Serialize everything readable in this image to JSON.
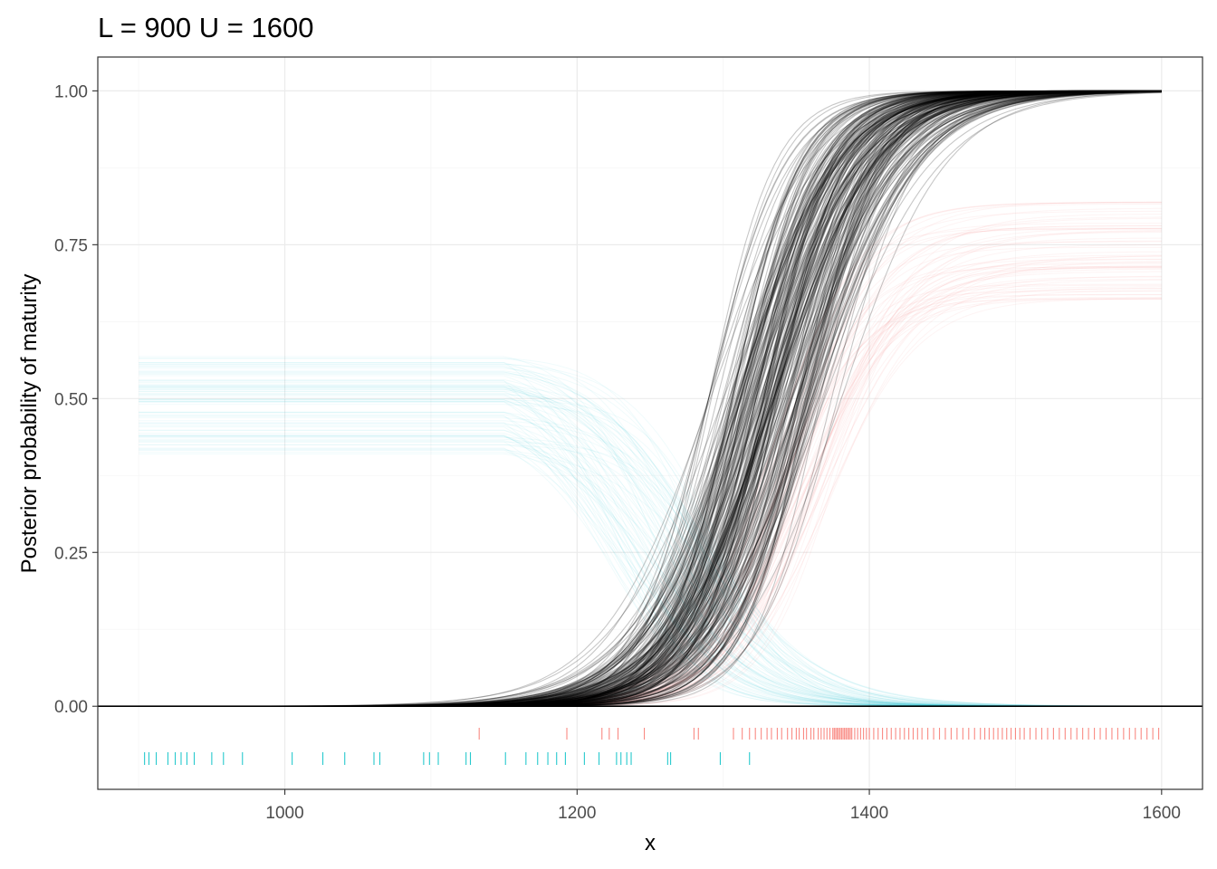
{
  "chart_data": {
    "type": "line",
    "title": "L = 900 U = 1600",
    "xlabel": "x",
    "ylabel": "Posterior probability of maturity",
    "xlim": [
      872,
      1628
    ],
    "ylim": [
      -0.135,
      1.055
    ],
    "x_ticks": [
      {
        "value": 1000,
        "label": "1000"
      },
      {
        "value": 1200,
        "label": "1200"
      },
      {
        "value": 1400,
        "label": "1400"
      },
      {
        "value": 1600,
        "label": "1600"
      }
    ],
    "y_ticks": [
      {
        "value": 0.0,
        "label": "0.00"
      },
      {
        "value": 0.25,
        "label": "0.25"
      },
      {
        "value": 0.5,
        "label": "0.50"
      },
      {
        "value": 0.75,
        "label": "0.75"
      },
      {
        "value": 1.0,
        "label": "1.00"
      }
    ],
    "grid": true,
    "reference_line": {
      "y": 0
    },
    "x_range": [
      900,
      1600
    ],
    "colors": {
      "posterior_curves": "#000000",
      "mature_band": "#F8766D",
      "immature_band": "#00BFC4",
      "panel_border": "#333333",
      "grid_major": "#ebebeb",
      "grid_minor": "#f5f5f5"
    },
    "series": [
      {
        "role": "posterior-logistic-curves",
        "draw_count": 240,
        "midpoint_range": [
          1290,
          1395
        ],
        "slope_range": [
          0.025,
          0.045
        ]
      },
      {
        "role": "mature-probability-band",
        "draw_count": 60,
        "plateau_range": [
          0.66,
          0.82
        ],
        "midpoint_range": [
          1330,
          1375
        ]
      },
      {
        "role": "immature-probability-band",
        "draw_count": 80,
        "plateau_range": [
          0.41,
          0.57
        ],
        "midpoint_range": [
          1215,
          1300
        ]
      }
    ],
    "rug_mature": [
      1133,
      1193,
      1217,
      1222,
      1228,
      1246,
      1280,
      1283,
      1307,
      1313,
      1318,
      1322,
      1326,
      1330,
      1333,
      1337,
      1340,
      1344,
      1347,
      1350,
      1352,
      1355,
      1357,
      1360,
      1362,
      1365,
      1367,
      1369,
      1371,
      1373,
      1375,
      1376,
      1377,
      1378,
      1379,
      1380,
      1381,
      1382,
      1383,
      1384,
      1385,
      1386,
      1387,
      1388,
      1390,
      1392,
      1394,
      1396,
      1398,
      1400,
      1403,
      1406,
      1409,
      1412,
      1415,
      1418,
      1421,
      1424,
      1427,
      1430,
      1433,
      1436,
      1440,
      1444,
      1448,
      1452,
      1456,
      1460,
      1464,
      1468,
      1472,
      1476,
      1479,
      1482,
      1485,
      1488,
      1491,
      1494,
      1497,
      1500,
      1503,
      1506,
      1510,
      1514,
      1518,
      1522,
      1526,
      1530,
      1534,
      1538,
      1542,
      1546,
      1550,
      1554,
      1558,
      1562,
      1566,
      1570,
      1574,
      1578,
      1582,
      1586,
      1590,
      1594,
      1598
    ],
    "rug_immature": [
      904,
      907,
      912,
      920,
      925,
      929,
      933,
      938,
      950,
      958,
      971,
      1005,
      1026,
      1041,
      1061,
      1065,
      1095,
      1099,
      1105,
      1124,
      1127,
      1151,
      1165,
      1173,
      1180,
      1186,
      1192,
      1205,
      1215,
      1227,
      1230,
      1234,
      1237,
      1262,
      1264,
      1298,
      1318
    ]
  }
}
